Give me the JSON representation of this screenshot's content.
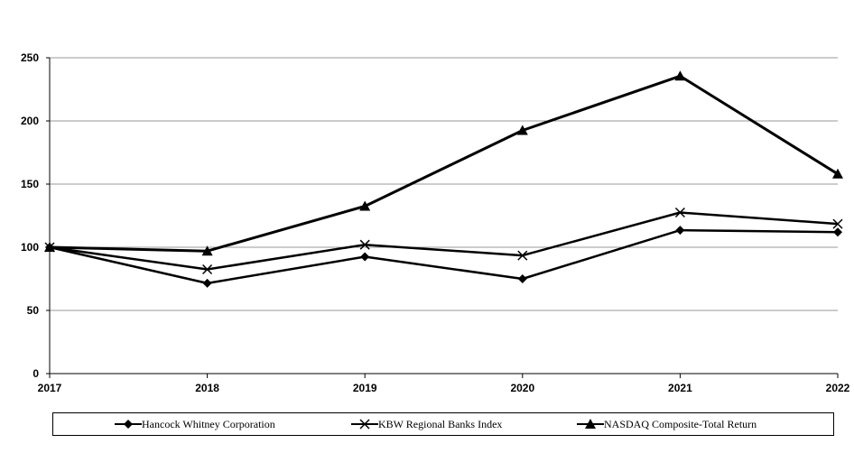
{
  "chart_data": {
    "type": "line",
    "x": [
      "2017",
      "2018",
      "2019",
      "2020",
      "2021",
      "2022"
    ],
    "ylim": [
      0,
      250
    ],
    "yticks": [
      0,
      50,
      100,
      150,
      200,
      250
    ],
    "grid": true,
    "legend_position": "bottom",
    "series": [
      {
        "name": "Hancock Whitney Corporation",
        "marker": "diamond",
        "values": [
          100,
          71.5,
          92.5,
          75,
          113.5,
          112
        ]
      },
      {
        "name": "KBW Regional Banks Index",
        "marker": "x",
        "values": [
          100,
          82.5,
          102,
          93.5,
          127.5,
          118.5
        ]
      },
      {
        "name": "NASDAQ Composite-Total Return",
        "marker": "triangle",
        "values": [
          100,
          97,
          132.5,
          192.5,
          235.5,
          158
        ]
      }
    ]
  }
}
